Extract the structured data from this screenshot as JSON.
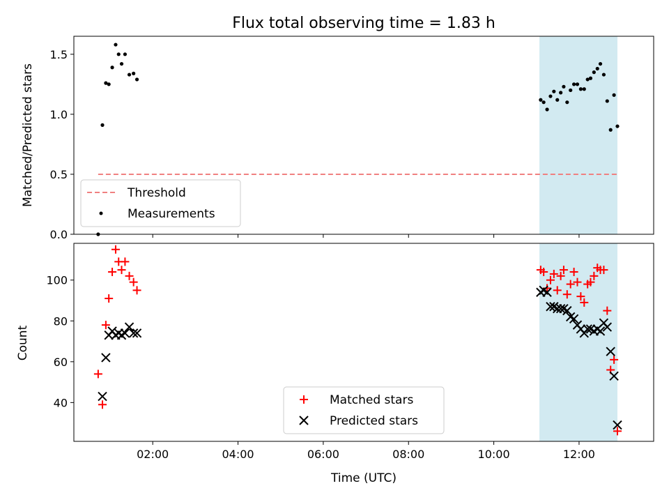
{
  "chart_data": [
    {
      "type": "scatter",
      "title": "Flux total observing time = 1.83 h",
      "xlabel": "",
      "ylabel": "Matched/Predicted stars",
      "xlim": [
        0.15,
        13.75
      ],
      "ylim": [
        0,
        1.65
      ],
      "yticks": [
        0.0,
        0.5,
        1.0,
        1.5
      ],
      "ytick_labels": [
        "0.0",
        "0.5",
        "1.0",
        "1.5"
      ],
      "shaded_span": {
        "x": [
          11.07,
          12.9
        ],
        "color": "#add8e6"
      },
      "threshold": {
        "name": "Threshold",
        "value": 0.5,
        "x": [
          0.72,
          12.9
        ],
        "color": "#f08080",
        "style": "dashed"
      },
      "series": [
        {
          "name": "Measurements",
          "color": "#000000",
          "marker": "dot",
          "points": [
            [
              0.72,
              0.0
            ],
            [
              0.82,
              0.91
            ],
            [
              0.9,
              1.26
            ],
            [
              0.97,
              1.25
            ],
            [
              1.05,
              1.39
            ],
            [
              1.13,
              1.58
            ],
            [
              1.2,
              1.5
            ],
            [
              1.27,
              1.42
            ],
            [
              1.35,
              1.5
            ],
            [
              1.45,
              1.33
            ],
            [
              1.55,
              1.34
            ],
            [
              1.63,
              1.29
            ],
            [
              11.1,
              1.12
            ],
            [
              11.17,
              1.1
            ],
            [
              11.25,
              1.04
            ],
            [
              11.33,
              1.15
            ],
            [
              11.41,
              1.19
            ],
            [
              11.49,
              1.12
            ],
            [
              11.57,
              1.18
            ],
            [
              11.64,
              1.23
            ],
            [
              11.72,
              1.1
            ],
            [
              11.8,
              1.2
            ],
            [
              11.88,
              1.25
            ],
            [
              11.96,
              1.25
            ],
            [
              12.04,
              1.21
            ],
            [
              12.12,
              1.21
            ],
            [
              12.2,
              1.29
            ],
            [
              12.27,
              1.3
            ],
            [
              12.35,
              1.35
            ],
            [
              12.43,
              1.38
            ],
            [
              12.5,
              1.42
            ],
            [
              12.58,
              1.33
            ],
            [
              12.66,
              1.11
            ],
            [
              12.74,
              0.87
            ],
            [
              12.82,
              1.16
            ],
            [
              12.9,
              0.9
            ]
          ]
        }
      ],
      "legend": {
        "placement": "lower-left",
        "entries": [
          "Threshold",
          "Measurements"
        ]
      }
    },
    {
      "type": "scatter",
      "title": "",
      "xlabel": "Time (UTC)",
      "ylabel": "Count",
      "xlim": [
        0.15,
        13.75
      ],
      "ylim": [
        21,
        118
      ],
      "yticks": [
        40,
        60,
        80,
        100
      ],
      "ytick_labels": [
        "40",
        "60",
        "80",
        "100"
      ],
      "xticks": [
        2,
        4,
        6,
        8,
        10,
        12
      ],
      "xtick_labels": [
        "02:00",
        "04:00",
        "06:00",
        "08:00",
        "10:00",
        "12:00"
      ],
      "shaded_span": {
        "x": [
          11.07,
          12.9
        ],
        "color": "#add8e6"
      },
      "series": [
        {
          "name": "Matched stars",
          "color": "#ff0000",
          "marker": "plus",
          "points": [
            [
              0.72,
              54
            ],
            [
              0.82,
              39
            ],
            [
              0.9,
              78
            ],
            [
              0.97,
              91
            ],
            [
              1.05,
              104
            ],
            [
              1.13,
              115
            ],
            [
              1.2,
              109
            ],
            [
              1.27,
              105
            ],
            [
              1.35,
              109
            ],
            [
              1.45,
              102
            ],
            [
              1.55,
              99
            ],
            [
              1.63,
              95
            ],
            [
              11.1,
              105
            ],
            [
              11.17,
              104
            ],
            [
              11.25,
              96
            ],
            [
              11.33,
              100
            ],
            [
              11.41,
              103
            ],
            [
              11.49,
              95
            ],
            [
              11.57,
              102
            ],
            [
              11.64,
              105
            ],
            [
              11.72,
              93
            ],
            [
              11.8,
              98
            ],
            [
              11.88,
              104
            ],
            [
              11.96,
              99
            ],
            [
              12.04,
              92
            ],
            [
              12.12,
              89
            ],
            [
              12.2,
              98
            ],
            [
              12.27,
              99
            ],
            [
              12.35,
              102
            ],
            [
              12.43,
              106
            ],
            [
              12.5,
              105
            ],
            [
              12.58,
              105
            ],
            [
              12.66,
              85
            ],
            [
              12.74,
              56
            ],
            [
              12.82,
              61
            ],
            [
              12.9,
              26
            ]
          ]
        },
        {
          "name": "Predicted stars",
          "color": "#000000",
          "marker": "x",
          "points": [
            [
              0.82,
              43
            ],
            [
              0.9,
              62
            ],
            [
              0.97,
              73
            ],
            [
              1.05,
              75
            ],
            [
              1.13,
              73
            ],
            [
              1.2,
              74
            ],
            [
              1.27,
              73
            ],
            [
              1.35,
              74
            ],
            [
              1.45,
              77
            ],
            [
              1.55,
              74
            ],
            [
              1.63,
              74
            ],
            [
              11.1,
              94
            ],
            [
              11.17,
              95
            ],
            [
              11.25,
              94
            ],
            [
              11.33,
              87
            ],
            [
              11.41,
              87
            ],
            [
              11.49,
              86
            ],
            [
              11.57,
              86
            ],
            [
              11.64,
              86
            ],
            [
              11.72,
              85
            ],
            [
              11.8,
              82
            ],
            [
              11.88,
              81
            ],
            [
              11.96,
              78
            ],
            [
              12.04,
              76
            ],
            [
              12.12,
              74
            ],
            [
              12.2,
              76
            ],
            [
              12.27,
              76
            ],
            [
              12.35,
              75
            ],
            [
              12.43,
              76
            ],
            [
              12.5,
              75
            ],
            [
              12.58,
              79
            ],
            [
              12.66,
              77
            ],
            [
              12.74,
              65
            ],
            [
              12.82,
              53
            ],
            [
              12.9,
              29
            ]
          ]
        }
      ],
      "legend": {
        "placement": "lower-center",
        "entries": [
          "Matched stars",
          "Predicted stars"
        ]
      }
    }
  ]
}
